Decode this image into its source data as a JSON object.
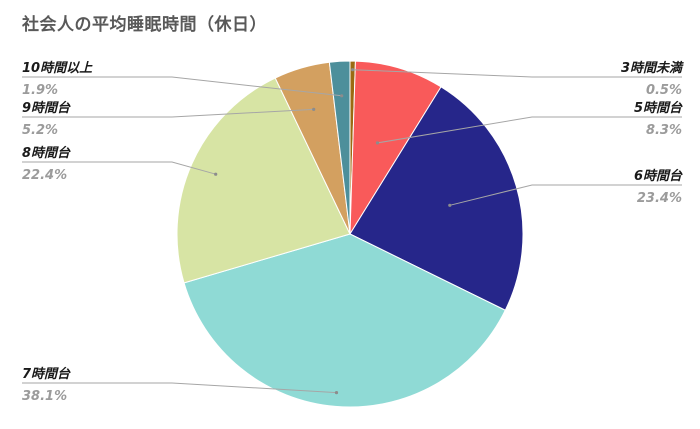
{
  "chart_data": {
    "type": "pie",
    "title": "社会人の平均睡眠時間（休日）",
    "slices": [
      {
        "label": "3時間未満",
        "value": 0.5,
        "display": "0.5%",
        "color": "#9b6a12"
      },
      {
        "label": "5時間台",
        "value": 8.3,
        "display": "8.3%",
        "color": "#f95a5a"
      },
      {
        "label": "6時間台",
        "value": 23.4,
        "display": "23.4%",
        "color": "#26268a"
      },
      {
        "label": "7時間台",
        "value": 38.1,
        "display": "38.1%",
        "color": "#8fdad5"
      },
      {
        "label": "8時間台",
        "value": 22.4,
        "display": "22.4%",
        "color": "#d7e4a4"
      },
      {
        "label": "9時間台",
        "value": 5.2,
        "display": "5.2%",
        "color": "#d3a060"
      },
      {
        "label": "10時間以上",
        "value": 1.9,
        "display": "1.9%",
        "color": "#4d8f9b"
      }
    ],
    "legend": "none",
    "data_labels": "outside-with-leader-lines"
  }
}
